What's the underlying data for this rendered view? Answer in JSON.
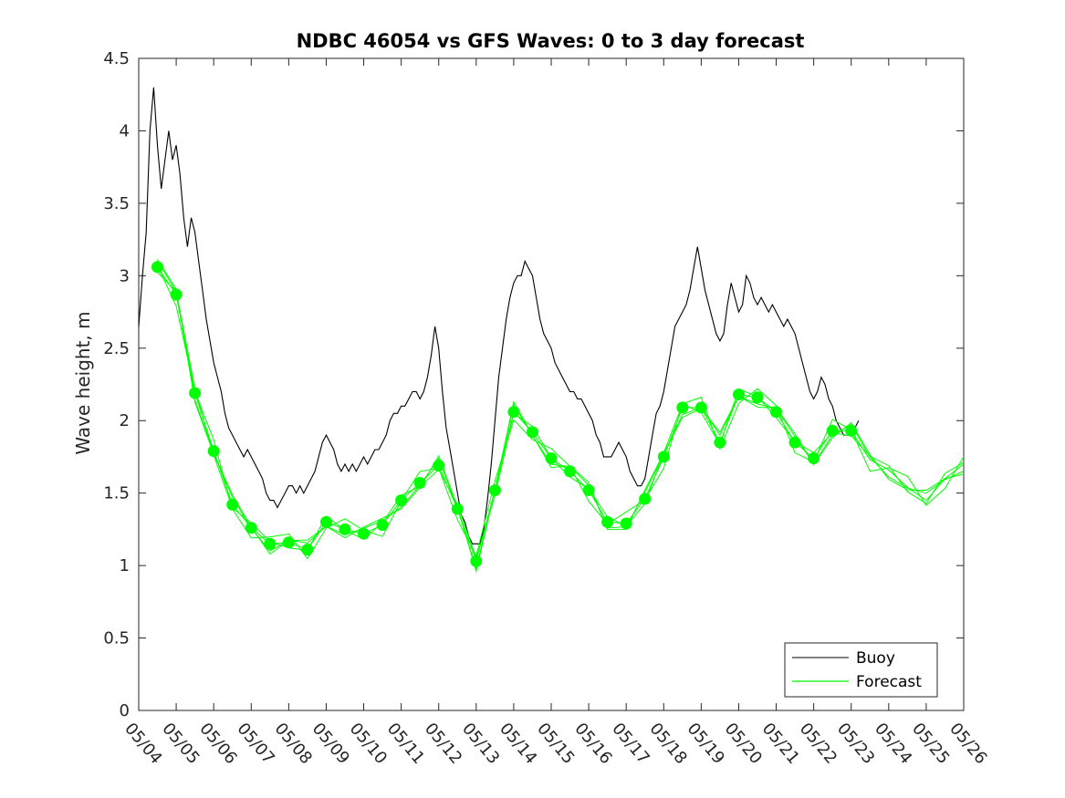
{
  "chart_data": {
    "type": "line",
    "title": "NDBC 46054 vs GFS Waves: 0 to 3 day forecast",
    "xlabel": "",
    "ylabel": "Wave height, m",
    "xlim": [
      "05/04",
      "05/26"
    ],
    "ylim": [
      0,
      4.5
    ],
    "x_ticks": [
      "05/04",
      "05/05",
      "05/06",
      "05/07",
      "05/08",
      "05/09",
      "05/10",
      "05/11",
      "05/12",
      "05/13",
      "05/14",
      "05/15",
      "05/16",
      "05/17",
      "05/18",
      "05/19",
      "05/20",
      "05/21",
      "05/22",
      "05/23",
      "05/24",
      "05/25",
      "05/26"
    ],
    "y_ticks": [
      "0",
      "0.5",
      "1",
      "1.5",
      "2",
      "2.5",
      "3",
      "3.5",
      "4",
      "4.5"
    ],
    "grid": false,
    "legend_position": "bottom-right",
    "colors": {
      "buoy": "#000000",
      "forecast": "#00ff00"
    },
    "series": [
      {
        "name": "Buoy",
        "color": "#000000",
        "points": [
          [
            0.0,
            2.65
          ],
          [
            0.1,
            3.0
          ],
          [
            0.2,
            3.3
          ],
          [
            0.3,
            4.0
          ],
          [
            0.4,
            4.3
          ],
          [
            0.5,
            3.9
          ],
          [
            0.6,
            3.6
          ],
          [
            0.7,
            3.8
          ],
          [
            0.8,
            4.0
          ],
          [
            0.9,
            3.8
          ],
          [
            1.0,
            3.9
          ],
          [
            1.1,
            3.7
          ],
          [
            1.2,
            3.4
          ],
          [
            1.3,
            3.2
          ],
          [
            1.4,
            3.4
          ],
          [
            1.5,
            3.3
          ],
          [
            1.6,
            3.1
          ],
          [
            1.7,
            2.9
          ],
          [
            1.8,
            2.7
          ],
          [
            1.9,
            2.55
          ],
          [
            2.0,
            2.4
          ],
          [
            2.1,
            2.3
          ],
          [
            2.2,
            2.2
          ],
          [
            2.3,
            2.05
          ],
          [
            2.4,
            1.95
          ],
          [
            2.5,
            1.9
          ],
          [
            2.6,
            1.85
          ],
          [
            2.7,
            1.8
          ],
          [
            2.8,
            1.75
          ],
          [
            2.9,
            1.8
          ],
          [
            3.0,
            1.75
          ],
          [
            3.1,
            1.7
          ],
          [
            3.2,
            1.65
          ],
          [
            3.3,
            1.6
          ],
          [
            3.4,
            1.5
          ],
          [
            3.5,
            1.45
          ],
          [
            3.6,
            1.45
          ],
          [
            3.7,
            1.4
          ],
          [
            3.8,
            1.45
          ],
          [
            3.9,
            1.5
          ],
          [
            4.0,
            1.55
          ],
          [
            4.1,
            1.55
          ],
          [
            4.2,
            1.5
          ],
          [
            4.3,
            1.55
          ],
          [
            4.4,
            1.5
          ],
          [
            4.5,
            1.55
          ],
          [
            4.6,
            1.6
          ],
          [
            4.7,
            1.65
          ],
          [
            4.8,
            1.75
          ],
          [
            4.9,
            1.85
          ],
          [
            5.0,
            1.9
          ],
          [
            5.1,
            1.85
          ],
          [
            5.2,
            1.8
          ],
          [
            5.3,
            1.7
          ],
          [
            5.4,
            1.65
          ],
          [
            5.5,
            1.7
          ],
          [
            5.6,
            1.65
          ],
          [
            5.7,
            1.7
          ],
          [
            5.8,
            1.65
          ],
          [
            5.9,
            1.7
          ],
          [
            6.0,
            1.75
          ],
          [
            6.1,
            1.7
          ],
          [
            6.2,
            1.75
          ],
          [
            6.3,
            1.8
          ],
          [
            6.4,
            1.8
          ],
          [
            6.5,
            1.85
          ],
          [
            6.6,
            1.9
          ],
          [
            6.7,
            2.0
          ],
          [
            6.8,
            2.05
          ],
          [
            6.9,
            2.05
          ],
          [
            7.0,
            2.1
          ],
          [
            7.1,
            2.1
          ],
          [
            7.2,
            2.15
          ],
          [
            7.3,
            2.2
          ],
          [
            7.4,
            2.2
          ],
          [
            7.5,
            2.15
          ],
          [
            7.6,
            2.2
          ],
          [
            7.7,
            2.3
          ],
          [
            7.8,
            2.45
          ],
          [
            7.9,
            2.65
          ],
          [
            8.0,
            2.5
          ],
          [
            8.1,
            2.2
          ],
          [
            8.2,
            1.95
          ],
          [
            8.3,
            1.8
          ],
          [
            8.4,
            1.65
          ],
          [
            8.5,
            1.5
          ],
          [
            8.6,
            1.35
          ],
          [
            8.7,
            1.3
          ],
          [
            8.8,
            1.2
          ],
          [
            8.9,
            1.15
          ],
          [
            9.0,
            1.15
          ],
          [
            9.1,
            1.15
          ],
          [
            9.2,
            1.25
          ],
          [
            9.3,
            1.45
          ],
          [
            9.4,
            1.7
          ],
          [
            9.5,
            2.0
          ],
          [
            9.6,
            2.3
          ],
          [
            9.7,
            2.5
          ],
          [
            9.8,
            2.7
          ],
          [
            9.9,
            2.85
          ],
          [
            10.0,
            2.95
          ],
          [
            10.1,
            3.0
          ],
          [
            10.2,
            3.0
          ],
          [
            10.3,
            3.1
          ],
          [
            10.4,
            3.05
          ],
          [
            10.5,
            3.0
          ],
          [
            10.6,
            2.85
          ],
          [
            10.7,
            2.7
          ],
          [
            10.8,
            2.6
          ],
          [
            10.9,
            2.55
          ],
          [
            11.0,
            2.5
          ],
          [
            11.1,
            2.4
          ],
          [
            11.2,
            2.35
          ],
          [
            11.3,
            2.3
          ],
          [
            11.4,
            2.25
          ],
          [
            11.5,
            2.2
          ],
          [
            11.6,
            2.2
          ],
          [
            11.7,
            2.15
          ],
          [
            11.8,
            2.15
          ],
          [
            11.9,
            2.1
          ],
          [
            12.0,
            2.05
          ],
          [
            12.1,
            2.0
          ],
          [
            12.2,
            1.9
          ],
          [
            12.3,
            1.85
          ],
          [
            12.4,
            1.75
          ],
          [
            12.5,
            1.75
          ],
          [
            12.6,
            1.75
          ],
          [
            12.7,
            1.8
          ],
          [
            12.8,
            1.85
          ],
          [
            12.9,
            1.8
          ],
          [
            13.0,
            1.75
          ],
          [
            13.1,
            1.65
          ],
          [
            13.2,
            1.6
          ],
          [
            13.3,
            1.55
          ],
          [
            13.4,
            1.55
          ],
          [
            13.5,
            1.6
          ],
          [
            13.6,
            1.75
          ],
          [
            13.7,
            1.9
          ],
          [
            13.8,
            2.05
          ],
          [
            13.9,
            2.1
          ],
          [
            14.0,
            2.2
          ],
          [
            14.1,
            2.35
          ],
          [
            14.2,
            2.5
          ],
          [
            14.3,
            2.65
          ],
          [
            14.4,
            2.7
          ],
          [
            14.5,
            2.75
          ],
          [
            14.6,
            2.8
          ],
          [
            14.7,
            2.9
          ],
          [
            14.8,
            3.05
          ],
          [
            14.9,
            3.2
          ],
          [
            15.0,
            3.05
          ],
          [
            15.1,
            2.9
          ],
          [
            15.2,
            2.8
          ],
          [
            15.3,
            2.7
          ],
          [
            15.4,
            2.6
          ],
          [
            15.5,
            2.55
          ],
          [
            15.6,
            2.6
          ],
          [
            15.7,
            2.8
          ],
          [
            15.8,
            2.95
          ],
          [
            15.9,
            2.85
          ],
          [
            16.0,
            2.75
          ],
          [
            16.1,
            2.8
          ],
          [
            16.2,
            3.0
          ],
          [
            16.3,
            2.95
          ],
          [
            16.4,
            2.85
          ],
          [
            16.5,
            2.8
          ],
          [
            16.6,
            2.85
          ],
          [
            16.7,
            2.8
          ],
          [
            16.8,
            2.75
          ],
          [
            16.9,
            2.8
          ],
          [
            17.0,
            2.75
          ],
          [
            17.1,
            2.7
          ],
          [
            17.2,
            2.65
          ],
          [
            17.3,
            2.7
          ],
          [
            17.4,
            2.65
          ],
          [
            17.5,
            2.6
          ],
          [
            17.6,
            2.5
          ],
          [
            17.7,
            2.4
          ],
          [
            17.8,
            2.3
          ],
          [
            17.9,
            2.2
          ],
          [
            18.0,
            2.15
          ],
          [
            18.1,
            2.2
          ],
          [
            18.2,
            2.3
          ],
          [
            18.3,
            2.25
          ],
          [
            18.4,
            2.15
          ],
          [
            18.5,
            2.1
          ],
          [
            18.6,
            2.0
          ],
          [
            18.7,
            1.95
          ],
          [
            18.8,
            1.9
          ],
          [
            18.9,
            1.9
          ],
          [
            19.0,
            1.95
          ],
          [
            19.1,
            1.95
          ],
          [
            19.2,
            2.0
          ]
        ]
      },
      {
        "name": "Forecast",
        "color": "#00ff00",
        "points": [
          [
            0.5,
            3.06
          ],
          [
            1.0,
            2.87
          ],
          [
            1.5,
            2.19
          ],
          [
            2.0,
            1.79
          ],
          [
            2.5,
            1.42
          ],
          [
            3.0,
            1.26
          ],
          [
            3.5,
            1.15
          ],
          [
            4.0,
            1.16
          ],
          [
            4.5,
            1.11
          ],
          [
            5.0,
            1.3
          ],
          [
            5.5,
            1.25
          ],
          [
            6.0,
            1.22
          ],
          [
            6.5,
            1.28
          ],
          [
            7.0,
            1.45
          ],
          [
            7.5,
            1.57
          ],
          [
            8.0,
            1.69
          ],
          [
            8.5,
            1.39
          ],
          [
            9.0,
            1.03
          ],
          [
            9.5,
            1.52
          ],
          [
            10.0,
            2.06
          ],
          [
            10.5,
            1.92
          ],
          [
            11.0,
            1.74
          ],
          [
            11.5,
            1.65
          ],
          [
            12.0,
            1.52
          ],
          [
            12.5,
            1.3
          ],
          [
            13.0,
            1.29
          ],
          [
            13.5,
            1.46
          ],
          [
            14.0,
            1.75
          ],
          [
            14.5,
            2.09
          ],
          [
            15.0,
            2.09
          ],
          [
            15.5,
            1.85
          ],
          [
            16.0,
            2.18
          ],
          [
            16.5,
            2.16
          ],
          [
            17.0,
            2.06
          ],
          [
            17.5,
            1.85
          ],
          [
            18.0,
            1.74
          ],
          [
            18.5,
            1.93
          ],
          [
            19.0,
            1.93
          ],
          [
            19.5,
            1.73
          ],
          [
            20.0,
            1.66
          ],
          [
            20.5,
            1.54
          ],
          [
            21.0,
            1.45
          ],
          [
            21.5,
            1.6
          ],
          [
            22.0,
            1.7
          ]
        ]
      }
    ]
  },
  "legend": {
    "buoy_label": "Buoy",
    "forecast_label": "Forecast"
  }
}
